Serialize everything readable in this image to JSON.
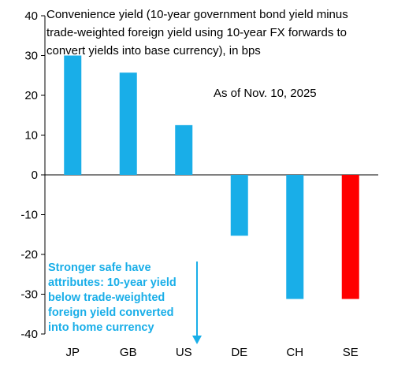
{
  "chart_data": {
    "type": "bar",
    "title_lines": [
      "Convenience yield (10-year government bond yield minus",
      "trade-weighted foreign yield using 10-year FX forwards to",
      "convert yields into base currency), in bps"
    ],
    "as_of": "As of Nov. 10, 2025",
    "categories": [
      "JP",
      "GB",
      "US",
      "DE",
      "CH",
      "SE"
    ],
    "values": [
      30,
      25.7,
      12.5,
      -15.3,
      -31.2,
      -31.2
    ],
    "colors": [
      "#19AEE8",
      "#19AEE8",
      "#19AEE8",
      "#19AEE8",
      "#19AEE8",
      "#FF0000"
    ],
    "ylim": [
      -40,
      40
    ],
    "yticks": [
      "40",
      "30",
      "20",
      "10",
      "0",
      "-10",
      "-20",
      "-30",
      "-40"
    ],
    "grid": false,
    "annotation_lines": [
      "Stronger safe have",
      "attributes: 10-year yield",
      "below trade-weighted",
      "foreign yield converted",
      "into home currency"
    ],
    "annotation_arrow_color": "#19AEE8"
  }
}
